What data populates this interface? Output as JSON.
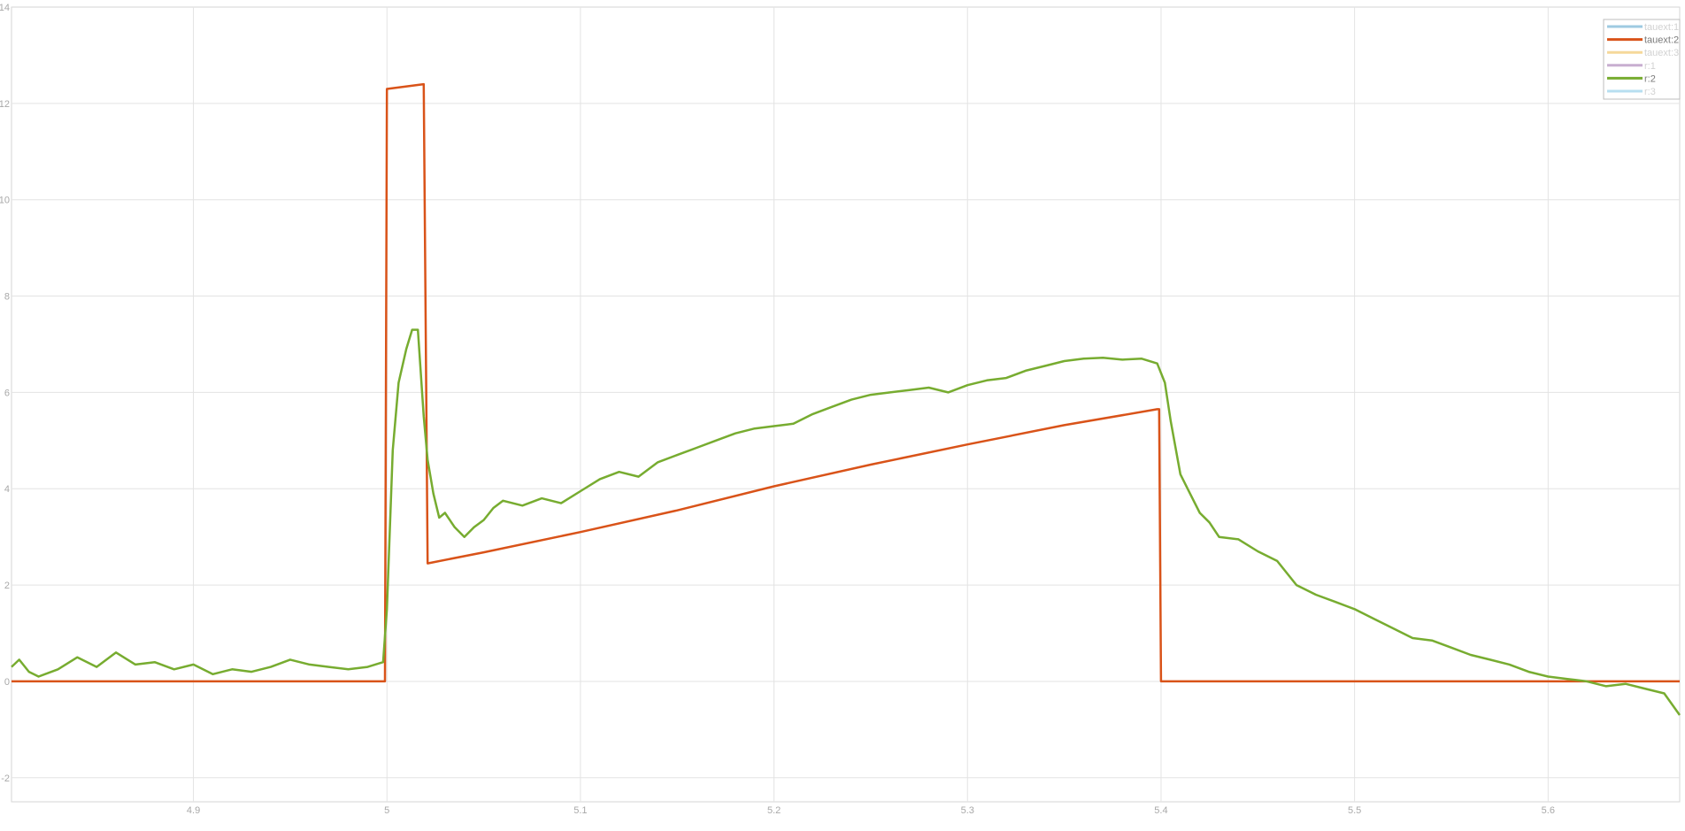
{
  "chart_data": {
    "type": "line",
    "title": "",
    "xlabel": "",
    "ylabel": "",
    "xlim": [
      4.806,
      5.668
    ],
    "ylim": [
      -2.5,
      14
    ],
    "grid": true,
    "legend_placement": "top-right",
    "x_ticks": [
      4.9,
      5,
      5.1,
      5.2,
      5.3,
      5.4,
      5.5,
      5.6
    ],
    "x_tick_labels": [
      "4.9",
      "5",
      "5.1",
      "5.2",
      "5.3",
      "5.4",
      "5.5",
      "5.6"
    ],
    "y_ticks": [
      -2,
      0,
      2,
      4,
      6,
      8,
      10,
      12,
      14
    ],
    "y_tick_labels": [
      "-2",
      "0",
      "2",
      "4",
      "6",
      "8",
      "10",
      "12",
      "14"
    ],
    "series": [
      {
        "name": "tauext:1",
        "color": "#9ecae1",
        "faded": true,
        "x": [],
        "y": []
      },
      {
        "name": "tauext:2",
        "color": "#d95319",
        "faded": false,
        "x": [
          4.806,
          4.999,
          5.0,
          5.019,
          5.021,
          5.05,
          5.1,
          5.15,
          5.2,
          5.25,
          5.3,
          5.35,
          5.398,
          5.399,
          5.4,
          5.668
        ],
        "y": [
          0,
          0,
          12.3,
          12.4,
          2.45,
          2.68,
          3.1,
          3.55,
          4.05,
          4.5,
          4.92,
          5.32,
          5.65,
          5.65,
          0,
          0
        ]
      },
      {
        "name": "tauext:3",
        "color": "#f5d89a",
        "faded": true,
        "x": [],
        "y": []
      },
      {
        "name": "r:1",
        "color": "#c8aed0",
        "faded": true,
        "x": [],
        "y": []
      },
      {
        "name": "r:2",
        "color": "#77ac30",
        "faded": false,
        "x": [
          4.806,
          4.81,
          4.815,
          4.82,
          4.83,
          4.84,
          4.85,
          4.86,
          4.87,
          4.88,
          4.89,
          4.9,
          4.91,
          4.92,
          4.93,
          4.94,
          4.95,
          4.96,
          4.97,
          4.98,
          4.99,
          4.998,
          5.0,
          5.003,
          5.006,
          5.01,
          5.013,
          5.016,
          5.019,
          5.021,
          5.024,
          5.027,
          5.03,
          5.035,
          5.04,
          5.045,
          5.05,
          5.055,
          5.06,
          5.065,
          5.07,
          5.08,
          5.09,
          5.1,
          5.11,
          5.12,
          5.13,
          5.14,
          5.15,
          5.16,
          5.17,
          5.18,
          5.19,
          5.2,
          5.21,
          5.22,
          5.23,
          5.24,
          5.25,
          5.26,
          5.27,
          5.28,
          5.29,
          5.3,
          5.31,
          5.32,
          5.33,
          5.34,
          5.35,
          5.36,
          5.37,
          5.38,
          5.39,
          5.398,
          5.402,
          5.405,
          5.41,
          5.415,
          5.42,
          5.425,
          5.43,
          5.44,
          5.45,
          5.46,
          5.47,
          5.48,
          5.49,
          5.5,
          5.51,
          5.52,
          5.53,
          5.54,
          5.55,
          5.56,
          5.57,
          5.58,
          5.59,
          5.6,
          5.61,
          5.62,
          5.63,
          5.64,
          5.65,
          5.66,
          5.668
        ],
        "y": [
          0.3,
          0.45,
          0.2,
          0.1,
          0.25,
          0.5,
          0.3,
          0.6,
          0.35,
          0.4,
          0.25,
          0.35,
          0.15,
          0.25,
          0.2,
          0.3,
          0.45,
          0.35,
          0.3,
          0.25,
          0.3,
          0.4,
          1.5,
          4.8,
          6.2,
          6.9,
          7.3,
          7.3,
          5.5,
          4.6,
          3.9,
          3.4,
          3.5,
          3.2,
          3.0,
          3.2,
          3.35,
          3.6,
          3.75,
          3.7,
          3.65,
          3.8,
          3.7,
          3.95,
          4.2,
          4.35,
          4.25,
          4.55,
          4.7,
          4.85,
          5.0,
          5.15,
          5.25,
          5.3,
          5.35,
          5.55,
          5.7,
          5.85,
          5.95,
          6.0,
          6.05,
          6.1,
          6.0,
          6.15,
          6.25,
          6.3,
          6.45,
          6.55,
          6.65,
          6.7,
          6.72,
          6.68,
          6.7,
          6.6,
          6.2,
          5.4,
          4.3,
          3.9,
          3.5,
          3.3,
          3.0,
          2.95,
          2.7,
          2.5,
          2.0,
          1.8,
          1.65,
          1.5,
          1.3,
          1.1,
          0.9,
          0.85,
          0.7,
          0.55,
          0.45,
          0.35,
          0.2,
          0.1,
          0.05,
          0.0,
          -0.1,
          -0.05,
          -0.15,
          -0.25,
          -0.7
        ]
      },
      {
        "name": "r:3",
        "color": "#b7dff0",
        "faded": true,
        "x": [],
        "y": []
      }
    ]
  }
}
